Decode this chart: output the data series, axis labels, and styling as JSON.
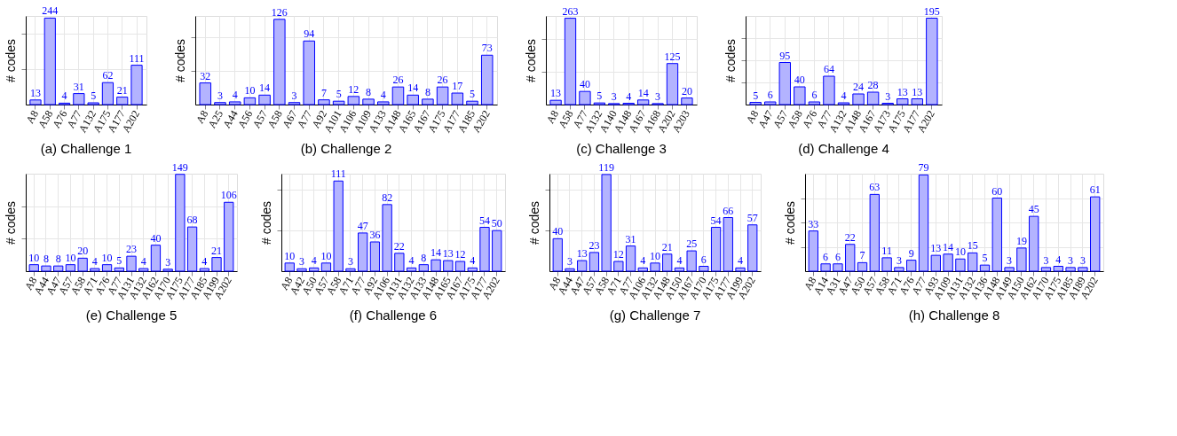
{
  "chart_data": [
    {
      "type": "bar",
      "title": "(a) Challenge 1",
      "ylabel": "# codes",
      "categories": [
        "A8",
        "A58",
        "A76",
        "A77",
        "A132",
        "A175",
        "A177",
        "A202"
      ],
      "values": [
        13,
        244,
        4,
        31,
        5,
        62,
        21,
        111
      ],
      "color": "#b3b3ff",
      "ylim": [
        0,
        250
      ],
      "yticks": [
        {
          "value": 100,
          "label": null
        },
        {
          "value": 200,
          "label": null
        }
      ],
      "grid": true,
      "data_labels": true,
      "tick_labels": "x"
    },
    {
      "type": "bar",
      "title": "(b) Challenge 2",
      "ylabel": "# codes",
      "categories": [
        "A8",
        "A25",
        "A44",
        "A56",
        "A57",
        "A58",
        "A67",
        "A77",
        "A92",
        "A101",
        "A106",
        "A109",
        "A133",
        "A148",
        "A165",
        "A167",
        "A175",
        "A177",
        "A185",
        "A202"
      ],
      "values": [
        32,
        3,
        4,
        10,
        14,
        126,
        3,
        94,
        7,
        5,
        12,
        8,
        4,
        26,
        14,
        8,
        26,
        17,
        5,
        73
      ],
      "color": "#b3b3ff",
      "ylim": [
        0,
        131
      ],
      "yticks": [
        {
          "value": 50,
          "label": null
        },
        {
          "value": 100,
          "label": null
        }
      ],
      "grid": true,
      "data_labels": true,
      "tick_labels": "x"
    },
    {
      "type": "bar",
      "title": "(c) Challenge 3",
      "ylabel": "# codes",
      "categories": [
        "A8",
        "A58",
        "A77",
        "A132",
        "A140",
        "A148",
        "A167",
        "A168",
        "A202",
        "A203"
      ],
      "values": [
        13,
        263,
        40,
        5,
        3,
        4,
        14,
        3,
        125,
        20
      ],
      "color": "#b3b3ff",
      "ylim": [
        0,
        270
      ],
      "yticks": [
        {
          "value": 100,
          "label": null
        },
        {
          "value": 200,
          "label": null
        }
      ],
      "grid": true,
      "data_labels": true,
      "tick_labels": "x"
    },
    {
      "type": "bar",
      "title": "(d) Challenge 4",
      "ylabel": "# codes",
      "categories": [
        "A8",
        "A47",
        "A57",
        "A58",
        "A76",
        "A77",
        "A132",
        "A148",
        "A167",
        "A173",
        "A175",
        "A177",
        "A202"
      ],
      "values": [
        5,
        6,
        95,
        40,
        6,
        64,
        4,
        24,
        28,
        3,
        13,
        13,
        195
      ],
      "color": "#b3b3ff",
      "ylim": [
        0,
        200
      ],
      "yticks": [
        {
          "value": 50,
          "label": null
        },
        {
          "value": 100,
          "label": null
        },
        {
          "value": 150,
          "label": null
        }
      ],
      "grid": true,
      "data_labels": true,
      "tick_labels": "x"
    },
    {
      "type": "bar",
      "title": "(e) Challenge 5",
      "ylabel": "# codes",
      "categories": [
        "A8",
        "A44",
        "A47",
        "A57",
        "A58",
        "A71",
        "A76",
        "A77",
        "A131",
        "A132",
        "A162",
        "A170",
        "A175",
        "A177",
        "A185",
        "A199",
        "A202"
      ],
      "values": [
        10,
        8,
        8,
        10,
        20,
        4,
        10,
        5,
        23,
        4,
        40,
        3,
        149,
        68,
        4,
        21,
        106
      ],
      "color": "#b3b3ff",
      "ylim": [
        0,
        150
      ],
      "yticks": [
        {
          "value": 50,
          "label": null
        },
        {
          "value": 100,
          "label": null
        }
      ],
      "grid": true,
      "data_labels": true,
      "tick_labels": "x"
    },
    {
      "type": "bar",
      "title": "(f) Challenge 6",
      "ylabel": "# codes",
      "categories": [
        "A8",
        "A42",
        "A50",
        "A57",
        "A58",
        "A71",
        "A77",
        "A92",
        "A106",
        "A131",
        "A132",
        "A133",
        "A148",
        "A165",
        "A167",
        "A175",
        "A177",
        "A202"
      ],
      "values": [
        10,
        3,
        4,
        10,
        111,
        3,
        47,
        36,
        82,
        22,
        4,
        8,
        14,
        13,
        12,
        4,
        54,
        50
      ],
      "color": "#b3b3ff",
      "ylim": [
        0,
        120
      ],
      "yticks": [
        {
          "value": 50,
          "label": null
        },
        {
          "value": 100,
          "label": null
        }
      ],
      "grid": true,
      "data_labels": true,
      "tick_labels": "x"
    },
    {
      "type": "bar",
      "title": "(g) Challenge 7",
      "ylabel": "# codes",
      "categories": [
        "A8",
        "A44",
        "A47",
        "A57",
        "A58",
        "A71",
        "A77",
        "A106",
        "A132",
        "A148",
        "A150",
        "A167",
        "A170",
        "A175",
        "A177",
        "A199",
        "A202"
      ],
      "values": [
        40,
        3,
        13,
        23,
        119,
        12,
        31,
        4,
        10,
        21,
        4,
        25,
        6,
        54,
        66,
        4,
        57
      ],
      "color": "#b3b3ff",
      "ylim": [
        0,
        120
      ],
      "yticks": [
        {
          "value": 50,
          "label": null
        },
        {
          "value": 100,
          "label": null
        }
      ],
      "grid": true,
      "data_labels": true,
      "tick_labels": "x"
    },
    {
      "type": "bar",
      "title": "(h) Challenge 8",
      "ylabel": "# codes",
      "categories": [
        "A8",
        "A14",
        "A31",
        "A47",
        "A50",
        "A57",
        "A58",
        "A71",
        "A76",
        "A77",
        "A93",
        "A109",
        "A131",
        "A132",
        "A136",
        "A148",
        "A149",
        "A150",
        "A162",
        "A170",
        "A175",
        "A185",
        "A189",
        "A202"
      ],
      "values": [
        33,
        6,
        6,
        22,
        7,
        63,
        11,
        3,
        9,
        79,
        13,
        14,
        10,
        15,
        5,
        60,
        3,
        19,
        45,
        3,
        4,
        3,
        3,
        61
      ],
      "color": "#b3b3ff",
      "ylim": [
        0,
        80
      ],
      "yticks": [
        {
          "value": 20,
          "label": null
        },
        {
          "value": 40,
          "label": null
        },
        {
          "value": 60,
          "label": null
        }
      ],
      "grid": true,
      "data_labels": true,
      "tick_labels": "x"
    }
  ]
}
